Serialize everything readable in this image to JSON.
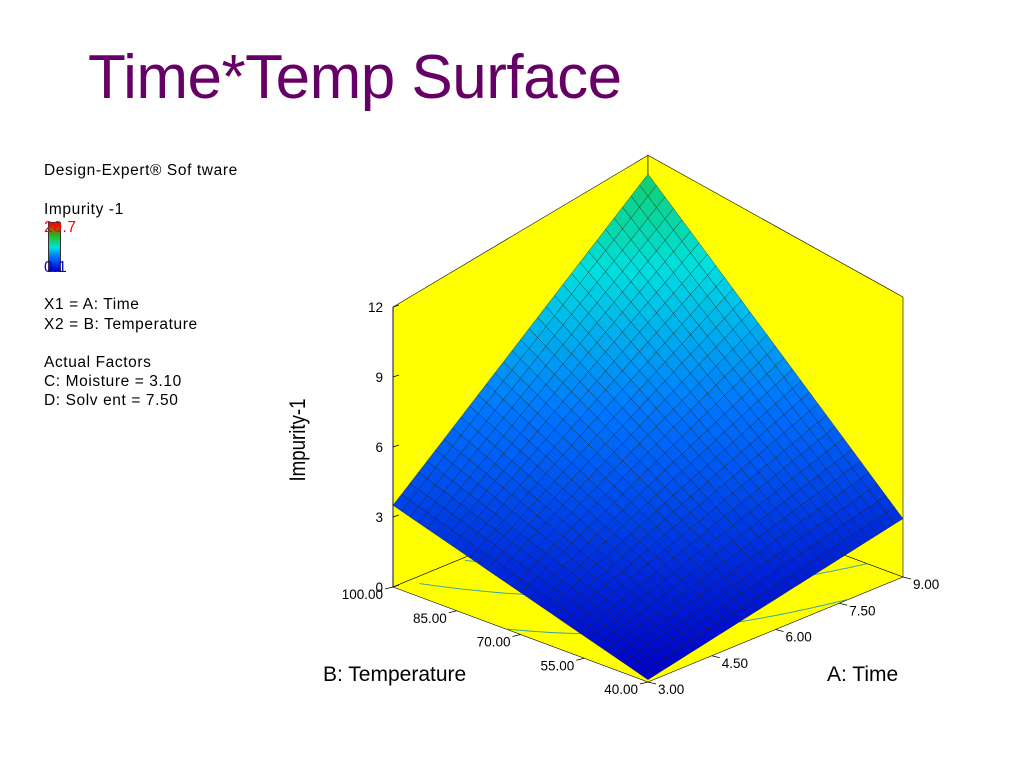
{
  "slide": {
    "title": "Time*Temp Surface"
  },
  "legend": {
    "software": "Design-Expert® Sof tware",
    "response_name": "Impurity -1",
    "color_max": "20.7",
    "color_min": "0.1",
    "x1": "X1 = A: Time",
    "x2": "X2 = B: Temperature",
    "actual_factors_heading": "Actual Factors",
    "factor_c": "C: Moisture = 3.10",
    "factor_d": "D: Solv ent = 7.50"
  },
  "chart_data": {
    "type": "surface",
    "z_label": "Impurity-1",
    "x_label": "A: Time",
    "y_label": "B: Temperature",
    "z_ticks": [
      "0",
      "3",
      "6",
      "9",
      "12"
    ],
    "x_ticks": [
      "3.00",
      "4.50",
      "6.00",
      "7.50",
      "9.00"
    ],
    "y_ticks": [
      "40.00",
      "55.00",
      "70.00",
      "85.00",
      "100.00"
    ],
    "x_range": [
      3,
      9
    ],
    "y_range": [
      40,
      100
    ],
    "z_range": [
      0,
      12
    ],
    "corners": [
      {
        "time": 3,
        "temperature": 40,
        "impurity": 0.1
      },
      {
        "time": 9,
        "temperature": 40,
        "impurity": 2.5
      },
      {
        "time": 3,
        "temperature": 100,
        "impurity": 3.5
      },
      {
        "time": 9,
        "temperature": 100,
        "impurity": 13.2
      }
    ],
    "colors": {
      "background": "#ffff00",
      "colormap": [
        "#0000c8",
        "#0074ff",
        "#00e0e0",
        "#20c020",
        "#ff0000"
      ],
      "title": "#660066"
    }
  }
}
